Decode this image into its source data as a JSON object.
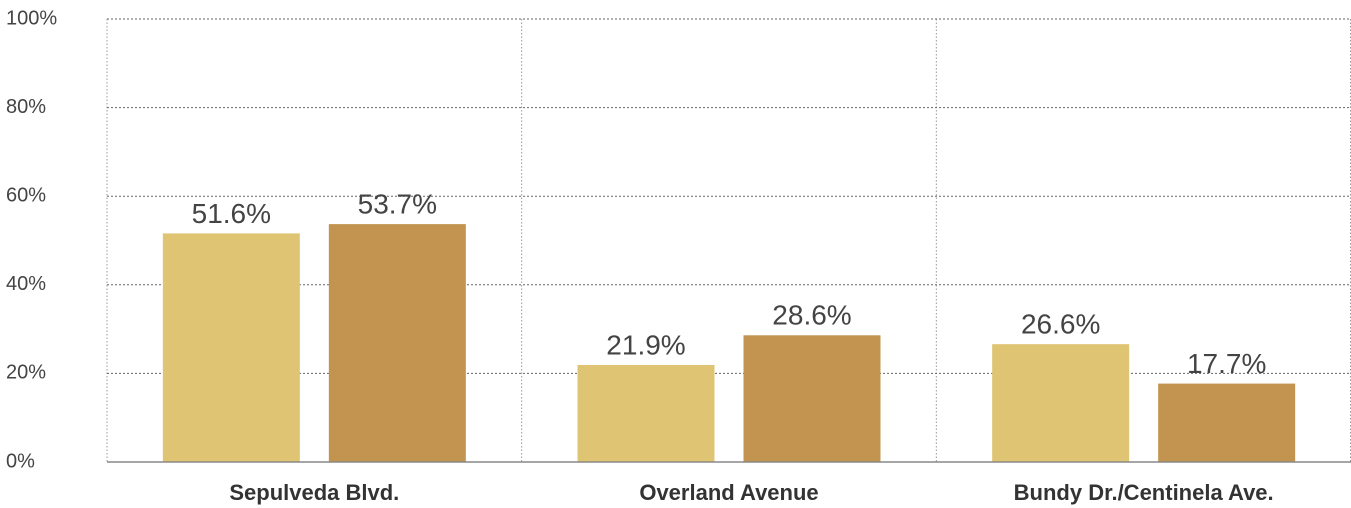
{
  "chart_data": {
    "type": "bar",
    "categories": [
      "Sepulveda Blvd.",
      "Overland Avenue",
      "Bundy Dr./Centinela Ave."
    ],
    "series": [
      {
        "color": "#dfc573",
        "values": [
          51.6,
          21.9,
          26.6
        ],
        "value_labels": [
          "51.6%",
          "21.9%",
          "26.6%"
        ]
      },
      {
        "color": "#c2944f",
        "values": [
          53.7,
          28.6,
          17.7
        ],
        "value_labels": [
          "53.7%",
          "28.6%",
          "17.7%"
        ]
      }
    ],
    "ylim": [
      0,
      100
    ],
    "yticks": [
      {
        "value": 0,
        "label": "0%"
      },
      {
        "value": 20,
        "label": "20%"
      },
      {
        "value": 40,
        "label": "40%"
      },
      {
        "value": 60,
        "label": "60%"
      },
      {
        "value": 80,
        "label": "80%"
      },
      {
        "value": 100,
        "label": "100%"
      }
    ],
    "grid": true
  }
}
